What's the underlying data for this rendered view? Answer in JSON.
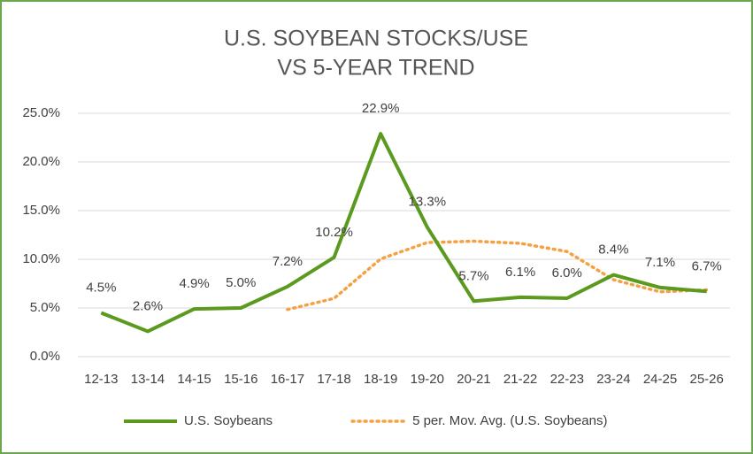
{
  "chart_data": {
    "type": "line",
    "title": [
      "U.S. SOYBEAN STOCKS/USE",
      "VS 5-YEAR TREND"
    ],
    "categories": [
      "12-13",
      "13-14",
      "14-15",
      "15-16",
      "16-17",
      "17-18",
      "18-19",
      "19-20",
      "20-21",
      "21-22",
      "22-23",
      "23-24",
      "24-25",
      "25-26"
    ],
    "series": [
      {
        "name": "U.S. Soybeans",
        "color": "#5b9a1f",
        "style": "solid",
        "values": [
          4.5,
          2.6,
          4.9,
          5.0,
          7.2,
          10.2,
          22.9,
          13.3,
          5.7,
          6.1,
          6.0,
          8.4,
          7.1,
          6.7
        ],
        "value_labels": [
          "4.5%",
          "2.6%",
          "4.9%",
          "5.0%",
          "7.2%",
          "10.2%",
          "22.9%",
          "13.3%",
          "5.7%",
          "6.1%",
          "6.0%",
          "8.4%",
          "7.1%",
          "6.7%"
        ]
      },
      {
        "name": "5 per. Mov. Avg. (U.S. Soybeans)",
        "color": "#f5a142",
        "style": "dotted",
        "values": [
          null,
          null,
          null,
          null,
          4.84,
          5.98,
          10.04,
          11.72,
          11.86,
          11.64,
          10.8,
          7.9,
          6.66,
          6.86
        ]
      }
    ],
    "ylim": [
      0,
      25
    ],
    "yticks": [
      {
        "value": 0,
        "label": "0.0%"
      },
      {
        "value": 5,
        "label": "5.0%"
      },
      {
        "value": 10,
        "label": "10.0%"
      },
      {
        "value": 15,
        "label": "15.0%"
      },
      {
        "value": 20,
        "label": "20.0%"
      },
      {
        "value": 25,
        "label": "25.0%"
      }
    ],
    "grid": true,
    "legend": "bottom"
  }
}
